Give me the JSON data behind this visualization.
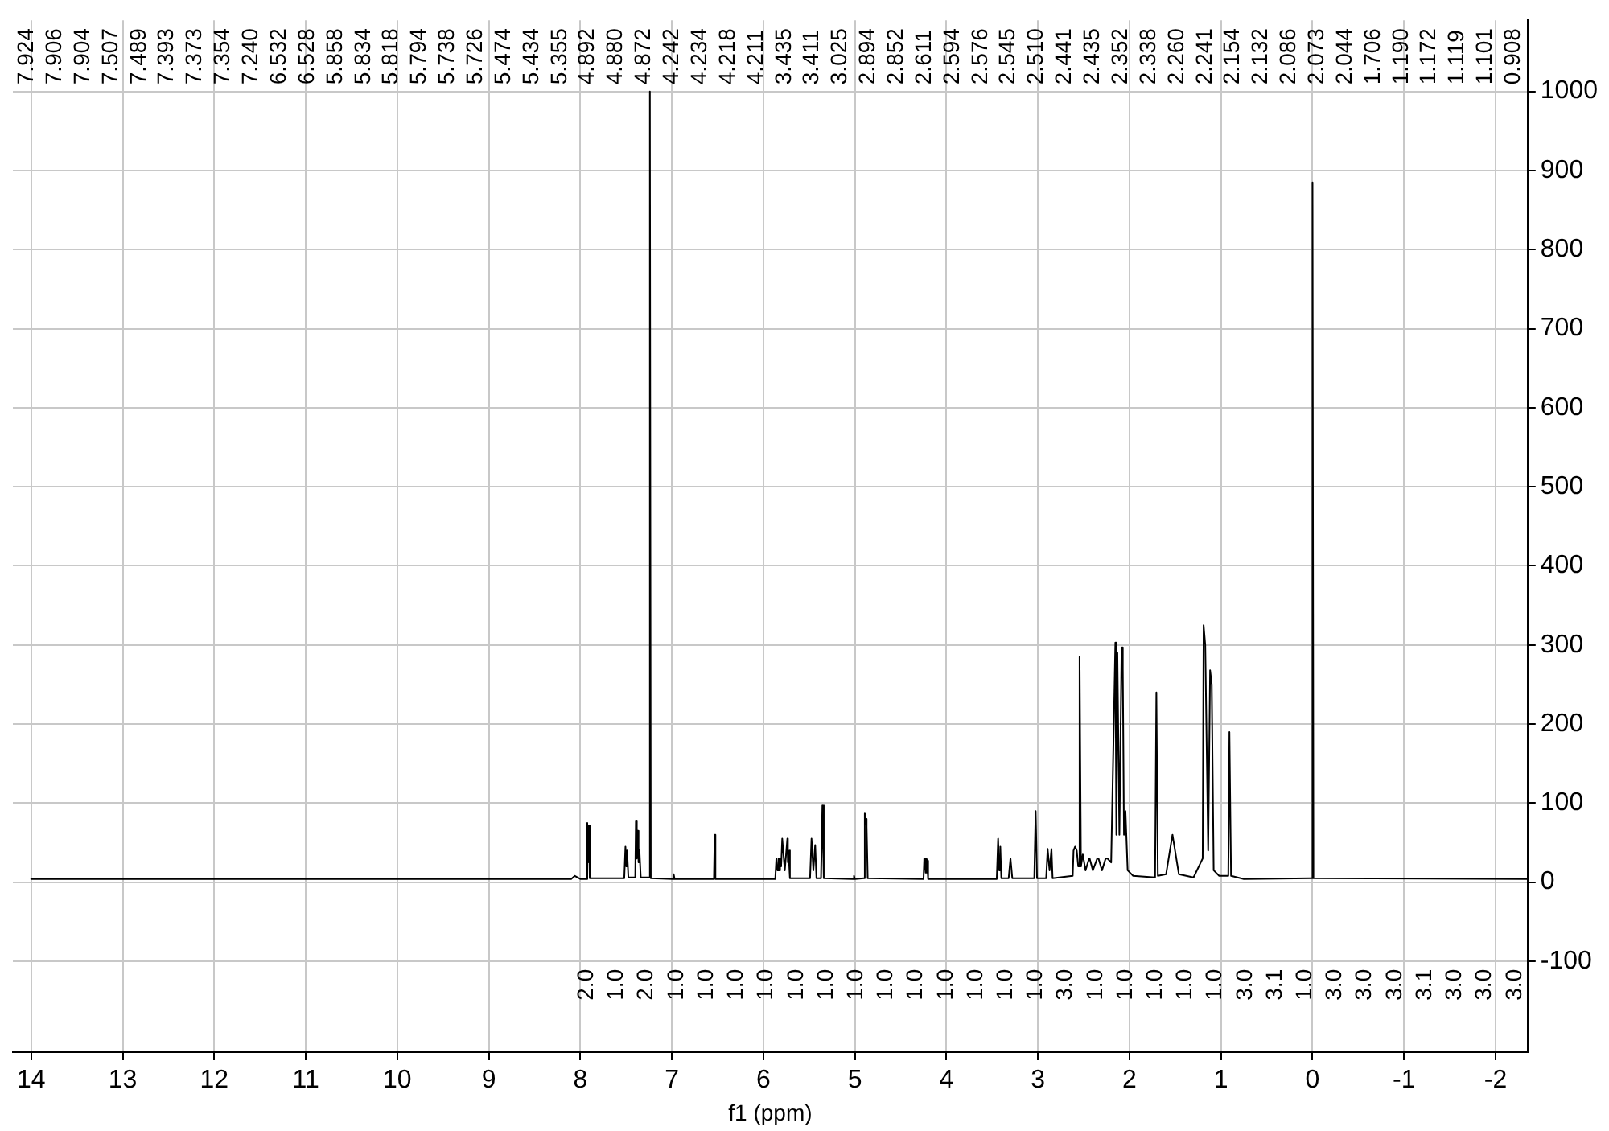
{
  "chart_data": {
    "type": "line",
    "xlabel": "f1 (ppm)",
    "color": "#000000",
    "grid": true,
    "xlim": [
      14.2,
      -2.35
    ],
    "xticks": [
      14,
      13,
      12,
      11,
      10,
      9,
      8,
      7,
      6,
      5,
      4,
      3,
      2,
      1,
      0,
      -1,
      -2
    ],
    "ylim": [
      -215,
      1090
    ],
    "yticks": [
      -100,
      0,
      100,
      200,
      300,
      400,
      500,
      600,
      700,
      800,
      900,
      1000
    ],
    "x": [
      14,
      8.1,
      8.06,
      8.0,
      7.94,
      7.924,
      7.915,
      7.906,
      7.904,
      7.89,
      7.52,
      7.507,
      7.498,
      7.489,
      7.475,
      7.4,
      7.393,
      7.383,
      7.373,
      7.364,
      7.354,
      7.34,
      7.25,
      7.24,
      7.23,
      6.99,
      6.98,
      6.97,
      6.54,
      6.532,
      6.528,
      6.52,
      5.87,
      5.858,
      5.846,
      5.834,
      5.826,
      5.818,
      5.806,
      5.794,
      5.766,
      5.738,
      5.732,
      5.726,
      5.71,
      5.49,
      5.474,
      5.454,
      5.434,
      5.42,
      5.37,
      5.355,
      5.34,
      5.02,
      5.01,
      5.0,
      4.9,
      4.892,
      4.88,
      4.872,
      4.86,
      4.25,
      4.242,
      4.234,
      4.226,
      4.218,
      4.211,
      4.2,
      3.45,
      3.435,
      3.423,
      3.411,
      3.4,
      3.32,
      3.3,
      3.28,
      3.04,
      3.025,
      3.01,
      2.91,
      2.894,
      2.873,
      2.852,
      2.84,
      2.62,
      2.611,
      2.594,
      2.576,
      2.56,
      2.545,
      2.53,
      2.51,
      2.48,
      2.441,
      2.435,
      2.4,
      2.352,
      2.338,
      2.3,
      2.26,
      2.241,
      2.2,
      2.154,
      2.143,
      2.132,
      2.11,
      2.086,
      2.073,
      2.06,
      2.044,
      2.02,
      1.96,
      1.72,
      1.706,
      1.69,
      1.6,
      1.53,
      1.46,
      1.3,
      1.2,
      1.19,
      1.172,
      1.14,
      1.119,
      1.101,
      1.08,
      1.02,
      0.92,
      0.908,
      0.89,
      0.75,
      0.01,
      0.0,
      -0.01,
      -2.35
    ],
    "values": [
      4,
      4,
      8,
      4,
      4,
      75,
      25,
      72,
      70,
      5,
      5,
      45,
      20,
      40,
      6,
      6,
      77,
      30,
      65,
      25,
      40,
      6,
      6,
      1000,
      5,
      4,
      10,
      4,
      4,
      60,
      58,
      4,
      4,
      30,
      15,
      30,
      15,
      30,
      20,
      55,
      15,
      55,
      25,
      40,
      5,
      5,
      55,
      15,
      47,
      5,
      5,
      97,
      5,
      4,
      8,
      4,
      5,
      87,
      80,
      70,
      5,
      4,
      30,
      27,
      12,
      30,
      27,
      4,
      4,
      55,
      15,
      45,
      5,
      5,
      30,
      5,
      5,
      90,
      5,
      5,
      42,
      15,
      42,
      5,
      8,
      40,
      45,
      40,
      20,
      285,
      20,
      35,
      15,
      30,
      30,
      15,
      30,
      30,
      15,
      30,
      30,
      25,
      303,
      60,
      290,
      60,
      297,
      270,
      60,
      90,
      15,
      8,
      6,
      240,
      8,
      10,
      60,
      10,
      6,
      30,
      325,
      300,
      40,
      268,
      250,
      15,
      8,
      8,
      190,
      8,
      4,
      5,
      885,
      5,
      4
    ],
    "annotations": [
      "7.924",
      "7.906",
      "7.904",
      "7.507",
      "7.489",
      "7.393",
      "7.373",
      "7.354",
      "7.240",
      "6.532",
      "6.528",
      "5.858",
      "5.834",
      "5.818",
      "5.794",
      "5.738",
      "5.726",
      "5.474",
      "5.434",
      "5.355",
      "4.892",
      "4.880",
      "4.872",
      "4.242",
      "4.234",
      "4.218",
      "4.211",
      "3.435",
      "3.411",
      "3.025",
      "2.894",
      "2.852",
      "2.611",
      "2.594",
      "2.576",
      "2.545",
      "2.510",
      "2.441",
      "2.435",
      "2.352",
      "2.338",
      "2.260",
      "2.241",
      "2.154",
      "2.132",
      "2.086",
      "2.073",
      "2.044",
      "1.706",
      "1.190",
      "1.172",
      "1.119",
      "1.101",
      "0.908",
      "2.0",
      "1.0",
      "2.0",
      "1.0",
      "1.0",
      "1.0",
      "1.0",
      "1.0",
      "1.0",
      "1.0",
      "1.0",
      "1.0",
      "1.0",
      "1.0",
      "1.0",
      "1.0",
      "3.0",
      "1.0",
      "1.0",
      "1.0",
      "1.0",
      "1.0",
      "3.0",
      "3.1",
      "1.0",
      "3.0",
      "3.0",
      "3.0",
      "3.1",
      "3.0",
      "3.0",
      "3.0"
    ]
  }
}
